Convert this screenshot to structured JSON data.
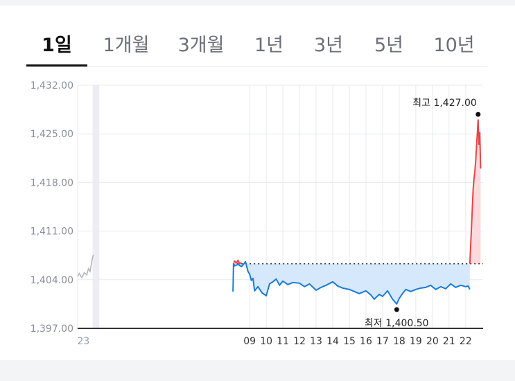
{
  "tabs": [
    {
      "label": "1일",
      "active": true
    },
    {
      "label": "1개월",
      "active": false
    },
    {
      "label": "3개월",
      "active": false
    },
    {
      "label": "1년",
      "active": false
    },
    {
      "label": "3년",
      "active": false
    },
    {
      "label": "5년",
      "active": false
    },
    {
      "label": "10년",
      "active": false
    }
  ],
  "chart_data": {
    "type": "line",
    "ylim": [
      1397,
      1432
    ],
    "yticks": [
      "1,432.00",
      "1,425.00",
      "1,418.00",
      "1,411.00",
      "1,404.00",
      "1,397.00"
    ],
    "ytick_values": [
      1432,
      1425,
      1418,
      1411,
      1404,
      1397
    ],
    "xticks": [
      "23",
      "09",
      "10",
      "11",
      "12",
      "13",
      "14",
      "15",
      "16",
      "17",
      "18",
      "19",
      "20",
      "21",
      "22"
    ],
    "xtick_values": [
      -1,
      9,
      10,
      11,
      12,
      13,
      14,
      15,
      16,
      17,
      18,
      19,
      20,
      21,
      22
    ],
    "xlim": [
      -1.35,
      23.05
    ],
    "baseline": 1406.3,
    "grid": true,
    "colors": {
      "up": "#e8444a",
      "down": "#1a7ad8",
      "prev": "#b3b5bb",
      "baseline": "#333333",
      "band": "#eceef4"
    },
    "prev_session": {
      "x": [
        -1.35,
        -1.25,
        -1.1,
        -0.95,
        -0.8,
        -0.7,
        -0.6,
        -0.5,
        -0.45,
        -0.4
      ],
      "values": [
        1404.5,
        1404.9,
        1404.3,
        1405.0,
        1404.7,
        1405.6,
        1405.2,
        1406.6,
        1407.2,
        1407.6
      ]
    },
    "series": [
      {
        "color": "down",
        "x": [
          8.0,
          8.03,
          8.1,
          8.3,
          8.5,
          8.6,
          8.75,
          8.9,
          9.0,
          9.1,
          9.2,
          9.3,
          9.5,
          9.75,
          10.0,
          10.2,
          10.4,
          10.6,
          10.8,
          11.0,
          11.3,
          11.6,
          12.0,
          12.3,
          12.6,
          13.0,
          13.3,
          13.6,
          14.0,
          14.3,
          14.6,
          15.0,
          15.3,
          15.6,
          16.0,
          16.3,
          16.5,
          16.8,
          17.0,
          17.3,
          17.6,
          17.85,
          18.0,
          18.2,
          18.4,
          18.7,
          19.0,
          19.3,
          19.6,
          19.9,
          20.2,
          20.5,
          20.8,
          21.1,
          21.4,
          21.7,
          22.0,
          22.15,
          22.25
        ],
        "values": [
          1402.3,
          1406.3,
          1406.0,
          1406.2,
          1405.9,
          1406.1,
          1406.6,
          1405.2,
          1404.8,
          1403.9,
          1404.2,
          1402.4,
          1403.0,
          1402.1,
          1401.7,
          1403.4,
          1403.7,
          1404.1,
          1403.2,
          1403.8,
          1403.3,
          1403.6,
          1403.5,
          1403.0,
          1403.4,
          1402.5,
          1402.9,
          1403.2,
          1403.7,
          1403.1,
          1402.8,
          1402.6,
          1402.3,
          1402.0,
          1402.4,
          1401.8,
          1401.2,
          1401.9,
          1401.6,
          1402.4,
          1401.2,
          1400.5,
          1401.3,
          1402.0,
          1402.6,
          1402.3,
          1402.6,
          1402.8,
          1402.9,
          1403.2,
          1402.6,
          1403.0,
          1402.7,
          1403.4,
          1402.9,
          1403.2,
          1403.0,
          1403.1,
          1402.6
        ]
      },
      {
        "color": "up",
        "x": [
          8.05,
          8.1,
          8.2,
          8.3,
          8.4,
          8.5
        ],
        "values": [
          1406.5,
          1406.7,
          1406.4,
          1406.8,
          1406.3,
          1406.5
        ]
      },
      {
        "color": "up",
        "x": [
          22.25,
          22.35,
          22.45,
          22.5,
          22.55,
          22.6,
          22.65,
          22.7,
          22.75,
          22.8,
          22.85,
          22.9
        ],
        "values": [
          1406.3,
          1411.5,
          1417.0,
          1418.5,
          1419.5,
          1421.0,
          1423.0,
          1425.0,
          1427.0,
          1423.5,
          1425.2,
          1420.0
        ]
      }
    ],
    "annotations": {
      "high": {
        "label": "최고 1,427.00",
        "x": 22.75,
        "value": 1427.0
      },
      "low": {
        "label": "최저 1,400.50",
        "x": 17.85,
        "value": 1400.5
      }
    }
  }
}
